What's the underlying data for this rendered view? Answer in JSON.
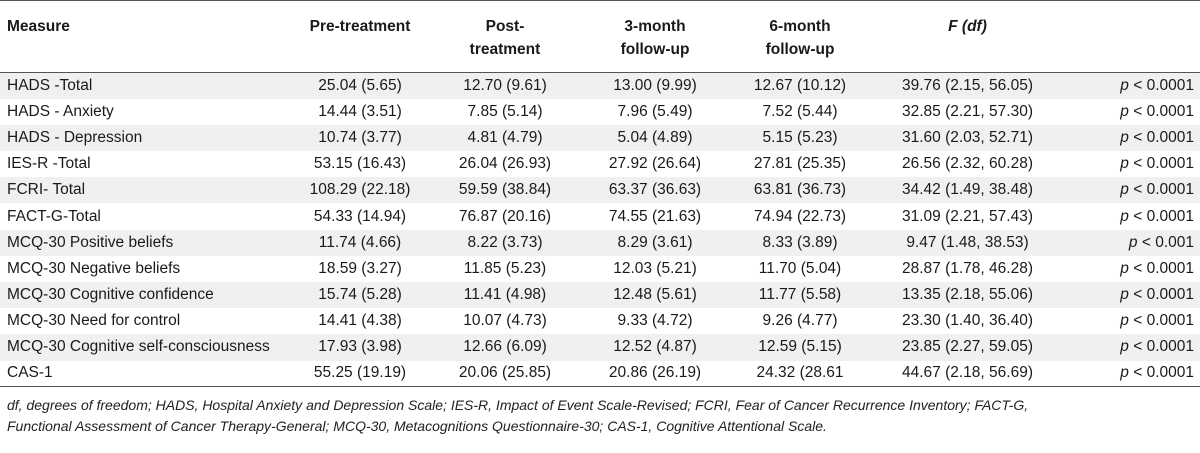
{
  "headers": {
    "measure": "Measure",
    "pre": "Pre-treatment",
    "post_1": "Post-",
    "post_2": "treatment",
    "three_1": "3-month",
    "three_2": "follow-up",
    "six_1": "6-month",
    "six_2": "follow-up",
    "f_label": "F",
    "f_df": "(df)"
  },
  "rows": [
    {
      "measure": "HADS -Total",
      "pre": "25.04 (5.65)",
      "post": "12.70 (9.61)",
      "m3": "13.00 (9.99)",
      "m6": "12.67 (10.12)",
      "f": "39.76 (2.15, 56.05)",
      "p_sym": "p",
      "p_rest": "< 0.0001"
    },
    {
      "measure": "HADS - Anxiety",
      "pre": "14.44 (3.51)",
      "post": "7.85 (5.14)",
      "m3": "7.96 (5.49)",
      "m6": "7.52 (5.44)",
      "f": "32.85 (2.21, 57.30)",
      "p_sym": "p",
      "p_rest": "< 0.0001"
    },
    {
      "measure": "HADS - Depression",
      "pre": "10.74 (3.77)",
      "post": "4.81 (4.79)",
      "m3": "5.04 (4.89)",
      "m6": "5.15 (5.23)",
      "f": "31.60 (2.03, 52.71)",
      "p_sym": "p",
      "p_rest": "< 0.0001"
    },
    {
      "measure": "IES-R -Total",
      "pre": "53.15 (16.43)",
      "post": "26.04 (26.93)",
      "m3": "27.92 (26.64)",
      "m6": "27.81 (25.35)",
      "f": "26.56 (2.32, 60.28)",
      "p_sym": "p",
      "p_rest": "< 0.0001"
    },
    {
      "measure": "FCRI- Total",
      "pre": "108.29 (22.18)",
      "post": "59.59 (38.84)",
      "m3": "63.37 (36.63)",
      "m6": "63.81 (36.73)",
      "f": "34.42 (1.49, 38.48)",
      "p_sym": "p",
      "p_rest": "< 0.0001"
    },
    {
      "measure": "FACT-G-Total",
      "pre": "54.33 (14.94)",
      "post": "76.87 (20.16)",
      "m3": "74.55 (21.63)",
      "m6": "74.94 (22.73)",
      "f": "31.09 (2.21, 57.43)",
      "p_sym": "p",
      "p_rest": "< 0.0001"
    },
    {
      "measure": "MCQ-30 Positive beliefs",
      "pre": "11.74 (4.66)",
      "post": "8.22 (3.73)",
      "m3": "8.29 (3.61)",
      "m6": "8.33 (3.89)",
      "f": "9.47 (1.48, 38.53)",
      "p_sym": "p",
      "p_rest": "< 0.001"
    },
    {
      "measure": "MCQ-30 Negative beliefs",
      "pre": "18.59 (3.27)",
      "post": "11.85 (5.23)",
      "m3": "12.03 (5.21)",
      "m6": "11.70 (5.04)",
      "f": "28.87 (1.78, 46.28)",
      "p_sym": "p",
      "p_rest": "< 0.0001"
    },
    {
      "measure": "MCQ-30 Cognitive confidence",
      "pre": "15.74 (5.28)",
      "post": "11.41 (4.98)",
      "m3": "12.48 (5.61)",
      "m6": "11.77 (5.58)",
      "f": "13.35 (2.18, 55.06)",
      "p_sym": "p",
      "p_rest": "< 0.0001"
    },
    {
      "measure": "MCQ-30 Need for control",
      "pre": "14.41 (4.38)",
      "post": "10.07 (4.73)",
      "m3": "9.33 (4.72)",
      "m6": "9.26 (4.77)",
      "f": "23.30 (1.40, 36.40)",
      "p_sym": "p",
      "p_rest": "< 0.0001"
    },
    {
      "measure": "MCQ-30 Cognitive self-consciousness",
      "pre": "17.93 (3.98)",
      "post": "12.66 (6.09)",
      "m3": "12.52 (4.87)",
      "m6": "12.59 (5.15)",
      "f": "23.85 (2.27, 59.05)",
      "p_sym": "p",
      "p_rest": "< 0.0001"
    },
    {
      "measure": "CAS-1",
      "pre": "55.25 (19.19)",
      "post": "20.06 (25.85)",
      "m3": "20.86 (26.19)",
      "m6": "24.32 (28.61",
      "f": "44.67 (2.18, 56.69)",
      "p_sym": "p",
      "p_rest": "< 0.0001"
    }
  ],
  "footnote": {
    "line1": "df, degrees of freedom; HADS, Hospital Anxiety and Depression Scale; IES-R, Impact of Event Scale-Revised; FCRI, Fear of Cancer Recurrence Inventory; FACT-G,",
    "line2": "Functional Assessment of Cancer Therapy-General; MCQ-30, Metacognitions Questionnaire-30; CAS-1, Cognitive Attentional Scale."
  },
  "colors": {
    "stripe": "#eef0f2",
    "rule": "#555555",
    "text": "#1a1a1a"
  }
}
